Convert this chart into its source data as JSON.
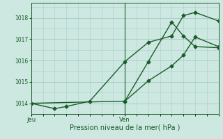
{
  "xlabel": "Pression niveau de la mer( hPa )",
  "bg_color": "#cce8e0",
  "grid_color": "#aacccc",
  "line_color": "#1a5c2a",
  "ylim": [
    1013.5,
    1018.7
  ],
  "yticks": [
    1014,
    1015,
    1016,
    1017,
    1018
  ],
  "day_labels": [
    "Jeu",
    "Ven"
  ],
  "day_positions": [
    0,
    8
  ],
  "xlim": [
    0,
    16
  ],
  "vline_x": 8,
  "line1_x": [
    0,
    2,
    3,
    5,
    8,
    10,
    12,
    13,
    14,
    16
  ],
  "line1_y": [
    1014.0,
    1013.75,
    1013.85,
    1014.1,
    1015.95,
    1016.85,
    1017.15,
    1018.1,
    1018.25,
    1017.85
  ],
  "line2_x": [
    8,
    10,
    12,
    13,
    14,
    16
  ],
  "line2_y": [
    1014.1,
    1015.05,
    1015.75,
    1016.25,
    1017.1,
    1016.65
  ],
  "line3_x": [
    0,
    8,
    10,
    12,
    13,
    14,
    16
  ],
  "line3_y": [
    1014.0,
    1014.1,
    1015.95,
    1017.8,
    1017.15,
    1016.65,
    1016.6
  ]
}
